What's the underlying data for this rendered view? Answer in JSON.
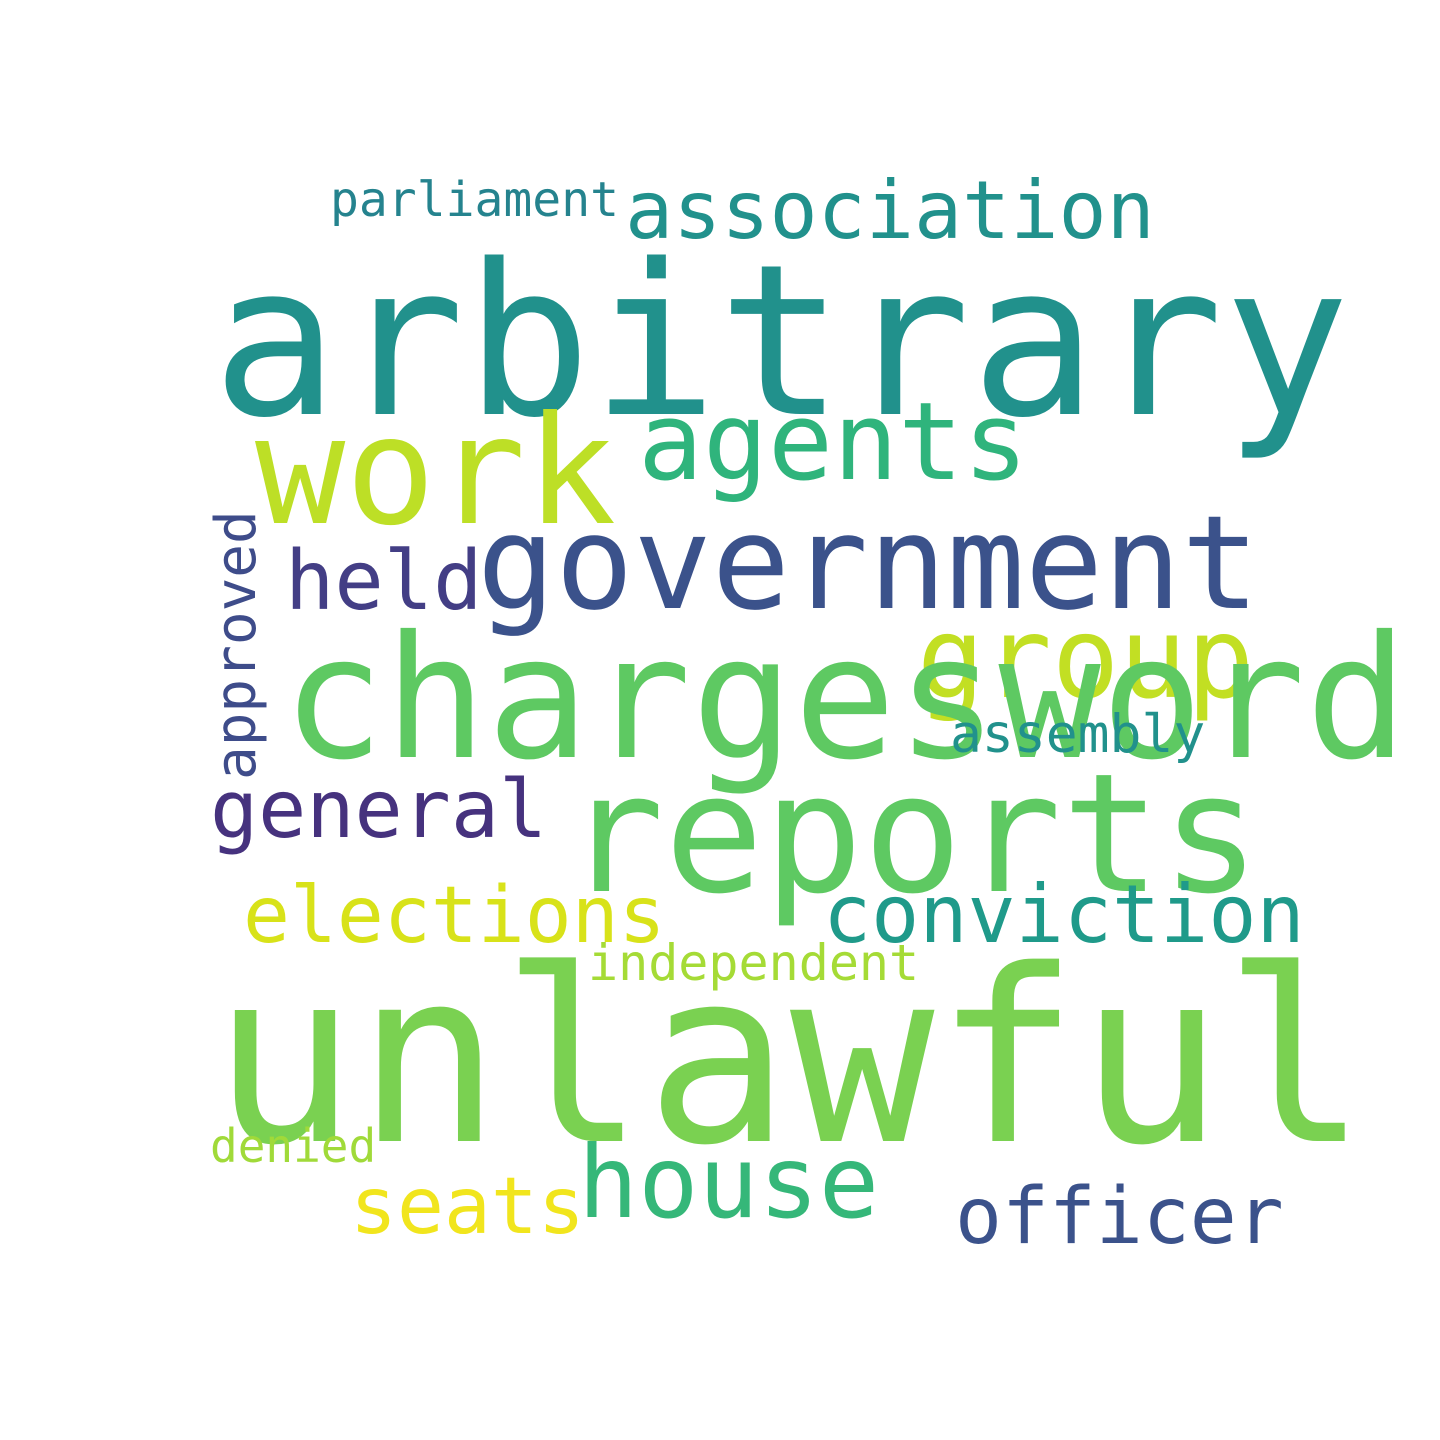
{
  "words": [
    {
      "text": "parliament",
      "color": "#25838e"
    },
    {
      "text": "association",
      "color": "#21918c"
    },
    {
      "text": "arbitrary",
      "color": "#21918c"
    },
    {
      "text": "agents",
      "color": "#2fb47c"
    },
    {
      "text": "work",
      "color": "#bddf26"
    },
    {
      "text": "government",
      "color": "#3b528b"
    },
    {
      "text": "held",
      "color": "#433e85"
    },
    {
      "text": "approved",
      "color": "#3e4c8a"
    },
    {
      "text": "group",
      "color": "#c2df23"
    },
    {
      "text": "chargesword",
      "color": "#5ec962"
    },
    {
      "text": "assembly",
      "color": "#21918c"
    },
    {
      "text": "general",
      "color": "#46327e"
    },
    {
      "text": "reports",
      "color": "#5ec962"
    },
    {
      "text": "elections",
      "color": "#d8e219"
    },
    {
      "text": "conviction",
      "color": "#1f9a8a"
    },
    {
      "text": "independent",
      "color": "#a5db36"
    },
    {
      "text": "unlawful",
      "color": "#7ad151"
    },
    {
      "text": "denied",
      "color": "#a0da39"
    },
    {
      "text": "house",
      "color": "#35b779"
    },
    {
      "text": "seats",
      "color": "#f1e51d"
    },
    {
      "text": "officer",
      "color": "#3b528b"
    }
  ]
}
